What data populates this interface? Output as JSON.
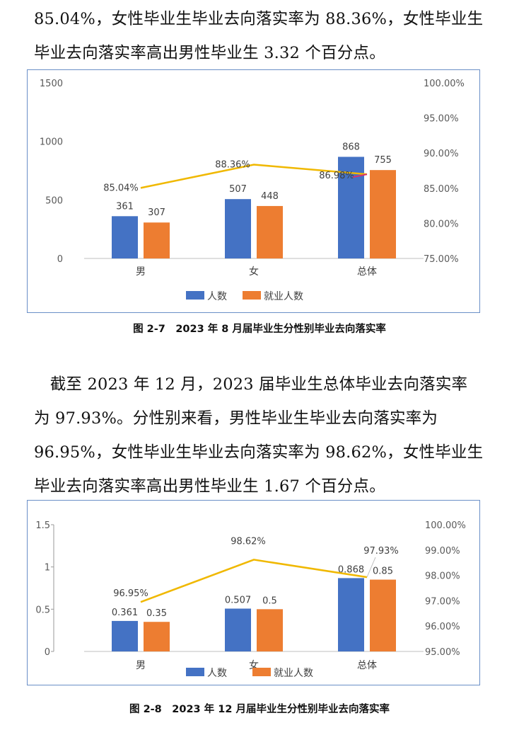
{
  "paragraph1": {
    "lines": [
      "85.04%，女性毕业生毕业去向落实率为 88.36%，女性毕业生",
      "毕业去向落实率高出男性毕业生 3.32 个百分点。"
    ]
  },
  "figure1": {
    "caption": "图 2-7　2023 年 8 月届毕业生分性别毕业去向落实率"
  },
  "paragraph2": {
    "lines": [
      "　截至 2023 年 12 月，2023 届毕业生总体毕业去向落实率",
      "为 97.93%。分性别来看，男性毕业生毕业去向落实率为",
      "96.95%，女性毕业生毕业去向落实率为 98.62%，女性毕业生",
      "毕业去向落实率高出男性毕业生 1.67 个百分点。"
    ]
  },
  "figure2": {
    "caption": "图 2-8　2023 年 12 月届毕业生分性别毕业去向落实率"
  },
  "colors": {
    "series1": "#4472c4",
    "series2": "#ed7d31",
    "line": "#f0b800",
    "leader": "#d9326e",
    "axis_text": "#595959",
    "frame": "#6a8fc7"
  },
  "chart_data": [
    {
      "type": "bar",
      "title": "",
      "categories": [
        "男",
        "女",
        "总体"
      ],
      "series": [
        {
          "name": "人数",
          "values": [
            361,
            507,
            868
          ],
          "labels": [
            "361",
            "507",
            "868"
          ]
        },
        {
          "name": "就业人数",
          "values": [
            307,
            448,
            755
          ],
          "labels": [
            "307",
            "448",
            "755"
          ]
        }
      ],
      "line": {
        "values": [
          85.04,
          88.36,
          86.98
        ],
        "labels": [
          "85.04%",
          "88.36%",
          "86.98%"
        ]
      },
      "ylim": [
        0,
        1500
      ],
      "yticks": [
        "0",
        "500",
        "1000",
        "1500"
      ],
      "y2lim": [
        75,
        100
      ],
      "y2ticks": [
        "75.00%",
        "80.00%",
        "85.00%",
        "90.00%",
        "95.00%",
        "100.00%"
      ],
      "legend": "bottom",
      "grid": false
    },
    {
      "type": "bar",
      "title": "",
      "categories": [
        "男",
        "女",
        "总体"
      ],
      "series": [
        {
          "name": "人数",
          "values": [
            0.361,
            0.507,
            0.868
          ],
          "labels": [
            "0.361",
            "0.507",
            "0.868"
          ]
        },
        {
          "name": "就业人数",
          "values": [
            0.35,
            0.5,
            0.85
          ],
          "labels": [
            "0.35",
            "0.5",
            "0.85"
          ]
        }
      ],
      "line": {
        "values": [
          96.95,
          98.62,
          97.93
        ],
        "labels": [
          "96.95%",
          "98.62%",
          "97.93%"
        ]
      },
      "ylim": [
        0,
        1.5
      ],
      "yticks": [
        "0",
        "0.5",
        "1",
        "1.5"
      ],
      "y2lim": [
        95,
        100
      ],
      "y2ticks": [
        "95.00%",
        "96.00%",
        "97.00%",
        "98.00%",
        "99.00%",
        "100.00%"
      ],
      "legend": "bottom",
      "grid": false
    }
  ]
}
